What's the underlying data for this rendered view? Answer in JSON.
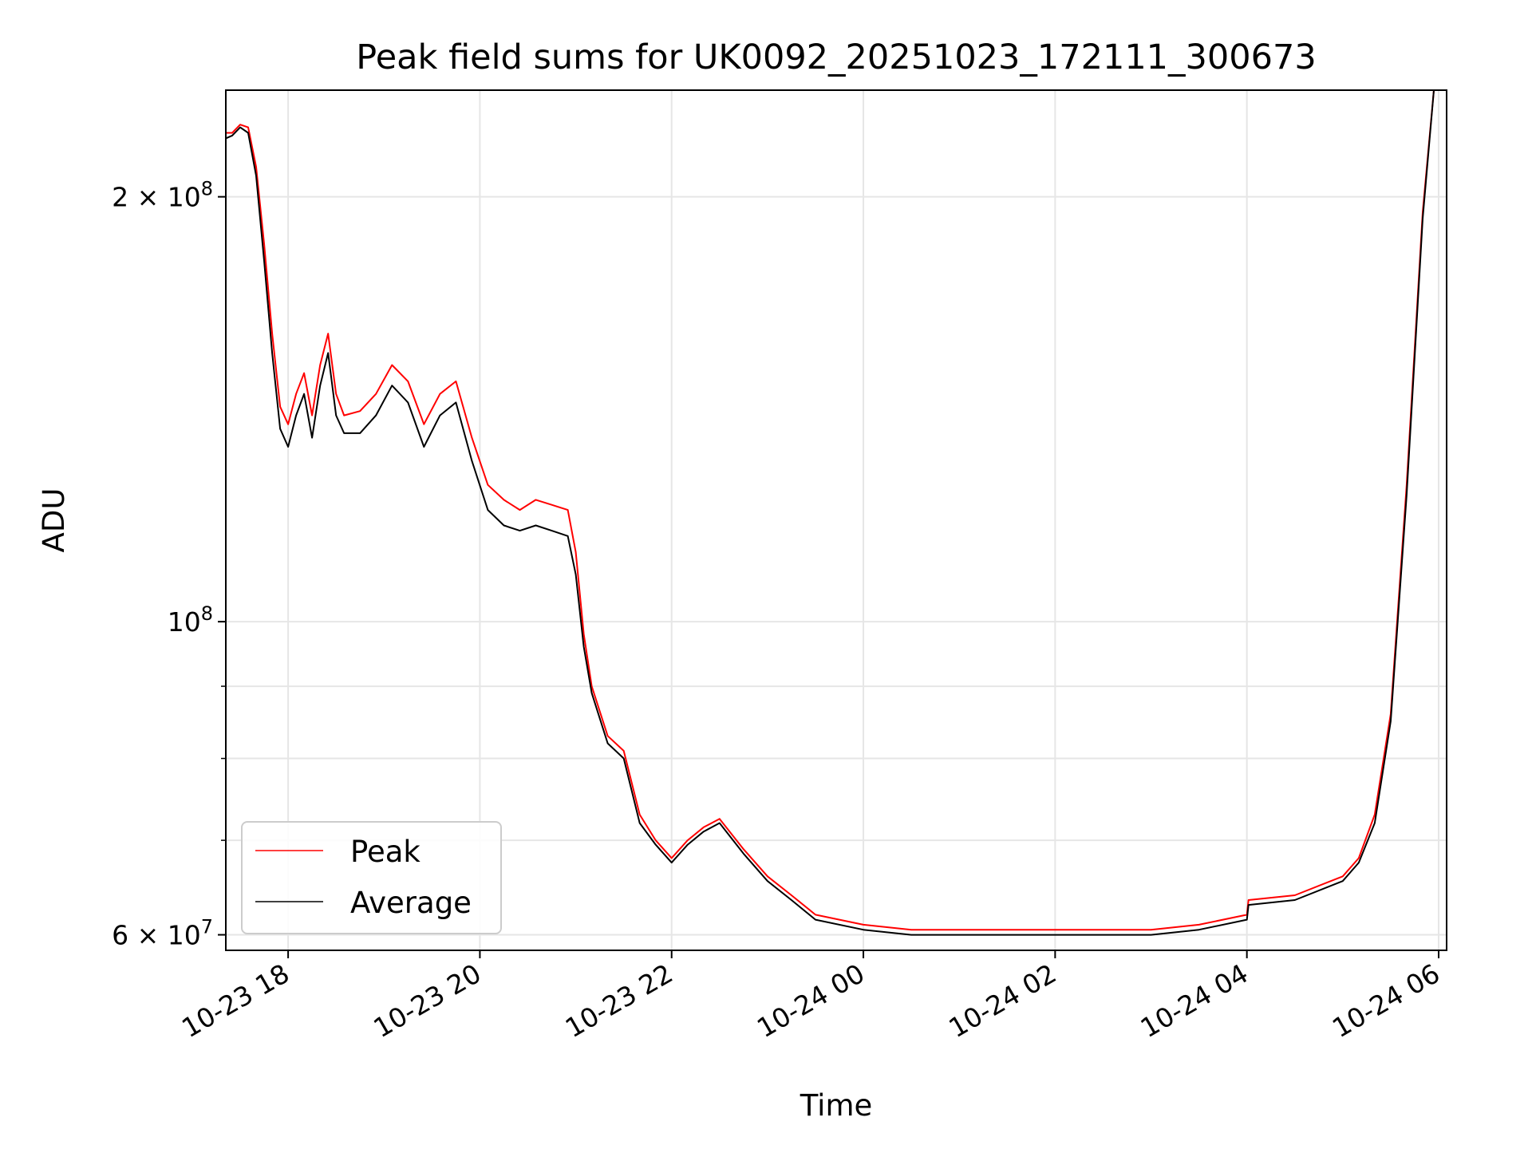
{
  "chart_data": {
    "type": "line",
    "title": "Peak field sums for UK0092_20251023_172111_300673",
    "xlabel": "Time",
    "ylabel": "ADU",
    "x_scale": "time",
    "y_scale": "log",
    "xlim": [
      "2025-10-23 17:21",
      "2025-10-24 06:05"
    ],
    "ylim": [
      58500000,
      238000000
    ],
    "grid": true,
    "legend_position": "lower left",
    "x_ticks": [
      {
        "t": "2025-10-23 18:00",
        "label": "10-23 18"
      },
      {
        "t": "2025-10-23 20:00",
        "label": "10-23 20"
      },
      {
        "t": "2025-10-23 22:00",
        "label": "10-23 22"
      },
      {
        "t": "2025-10-24 00:00",
        "label": "10-24 00"
      },
      {
        "t": "2025-10-24 02:00",
        "label": "10-24 02"
      },
      {
        "t": "2025-10-24 04:00",
        "label": "10-24 04"
      },
      {
        "t": "2025-10-24 06:00",
        "label": "10-24 06"
      }
    ],
    "y_ticks": [
      {
        "value": 60000000,
        "base": "6 × 10",
        "exp": "7"
      },
      {
        "value": 100000000,
        "base": "10",
        "exp": "8"
      },
      {
        "value": 200000000,
        "base": "2 × 10",
        "exp": "8"
      }
    ],
    "y_minor_gridlines": [
      70000000,
      80000000,
      90000000
    ],
    "series": [
      {
        "name": "Peak",
        "color": "#ff0000",
        "points": [
          [
            "2025-10-23 17:21",
            222000000
          ],
          [
            "2025-10-23 17:25",
            222000000
          ],
          [
            "2025-10-23 17:30",
            225000000
          ],
          [
            "2025-10-23 17:35",
            224000000
          ],
          [
            "2025-10-23 17:40",
            210000000
          ],
          [
            "2025-10-23 17:45",
            185000000
          ],
          [
            "2025-10-23 17:50",
            160000000
          ],
          [
            "2025-10-23 17:55",
            142000000
          ],
          [
            "2025-10-23 18:00",
            138000000
          ],
          [
            "2025-10-23 18:05",
            145000000
          ],
          [
            "2025-10-23 18:10",
            150000000
          ],
          [
            "2025-10-23 18:15",
            140000000
          ],
          [
            "2025-10-23 18:20",
            152000000
          ],
          [
            "2025-10-23 18:25",
            160000000
          ],
          [
            "2025-10-23 18:30",
            145000000
          ],
          [
            "2025-10-23 18:35",
            140000000
          ],
          [
            "2025-10-23 18:45",
            141000000
          ],
          [
            "2025-10-23 18:55",
            145000000
          ],
          [
            "2025-10-23 19:05",
            152000000
          ],
          [
            "2025-10-23 19:15",
            148000000
          ],
          [
            "2025-10-23 19:25",
            138000000
          ],
          [
            "2025-10-23 19:35",
            145000000
          ],
          [
            "2025-10-23 19:45",
            148000000
          ],
          [
            "2025-10-23 19:55",
            135000000
          ],
          [
            "2025-10-23 20:05",
            125000000
          ],
          [
            "2025-10-23 20:15",
            122000000
          ],
          [
            "2025-10-23 20:25",
            120000000
          ],
          [
            "2025-10-23 20:35",
            122000000
          ],
          [
            "2025-10-23 20:45",
            121000000
          ],
          [
            "2025-10-23 20:55",
            120000000
          ],
          [
            "2025-10-23 21:00",
            112000000
          ],
          [
            "2025-10-23 21:05",
            98000000
          ],
          [
            "2025-10-23 21:10",
            90000000
          ],
          [
            "2025-10-23 21:20",
            83000000
          ],
          [
            "2025-10-23 21:30",
            81000000
          ],
          [
            "2025-10-23 21:40",
            73000000
          ],
          [
            "2025-10-23 21:50",
            70000000
          ],
          [
            "2025-10-23 22:00",
            68000000
          ],
          [
            "2025-10-23 22:10",
            70000000
          ],
          [
            "2025-10-23 22:20",
            71500000
          ],
          [
            "2025-10-23 22:30",
            72500000
          ],
          [
            "2025-10-23 22:45",
            69000000
          ],
          [
            "2025-10-23 23:00",
            66000000
          ],
          [
            "2025-10-23 23:15",
            64000000
          ],
          [
            "2025-10-23 23:30",
            62000000
          ],
          [
            "2025-10-24 00:00",
            61000000
          ],
          [
            "2025-10-24 00:30",
            60500000
          ],
          [
            "2025-10-24 01:00",
            60500000
          ],
          [
            "2025-10-24 02:00",
            60500000
          ],
          [
            "2025-10-24 03:00",
            60500000
          ],
          [
            "2025-10-24 03:30",
            61000000
          ],
          [
            "2025-10-24 04:00",
            62000000
          ],
          [
            "2025-10-24 04:01",
            63500000
          ],
          [
            "2025-10-24 04:30",
            64000000
          ],
          [
            "2025-10-24 05:00",
            66000000
          ],
          [
            "2025-10-24 05:10",
            68000000
          ],
          [
            "2025-10-24 05:20",
            73000000
          ],
          [
            "2025-10-24 05:30",
            86000000
          ],
          [
            "2025-10-24 05:40",
            125000000
          ],
          [
            "2025-10-24 05:50",
            195000000
          ],
          [
            "2025-10-24 05:57",
            238000000
          ]
        ]
      },
      {
        "name": "Average",
        "color": "#000000",
        "points": [
          [
            "2025-10-23 17:21",
            220000000
          ],
          [
            "2025-10-23 17:25",
            221000000
          ],
          [
            "2025-10-23 17:30",
            224000000
          ],
          [
            "2025-10-23 17:35",
            222000000
          ],
          [
            "2025-10-23 17:40",
            207000000
          ],
          [
            "2025-10-23 17:45",
            180000000
          ],
          [
            "2025-10-23 17:50",
            155000000
          ],
          [
            "2025-10-23 17:55",
            137000000
          ],
          [
            "2025-10-23 18:00",
            133000000
          ],
          [
            "2025-10-23 18:05",
            140000000
          ],
          [
            "2025-10-23 18:10",
            145000000
          ],
          [
            "2025-10-23 18:15",
            135000000
          ],
          [
            "2025-10-23 18:20",
            147000000
          ],
          [
            "2025-10-23 18:25",
            155000000
          ],
          [
            "2025-10-23 18:30",
            140000000
          ],
          [
            "2025-10-23 18:35",
            136000000
          ],
          [
            "2025-10-23 18:45",
            136000000
          ],
          [
            "2025-10-23 18:55",
            140000000
          ],
          [
            "2025-10-23 19:05",
            147000000
          ],
          [
            "2025-10-23 19:15",
            143000000
          ],
          [
            "2025-10-23 19:25",
            133000000
          ],
          [
            "2025-10-23 19:35",
            140000000
          ],
          [
            "2025-10-23 19:45",
            143000000
          ],
          [
            "2025-10-23 19:55",
            130000000
          ],
          [
            "2025-10-23 20:05",
            120000000
          ],
          [
            "2025-10-23 20:15",
            117000000
          ],
          [
            "2025-10-23 20:25",
            116000000
          ],
          [
            "2025-10-23 20:35",
            117000000
          ],
          [
            "2025-10-23 20:45",
            116000000
          ],
          [
            "2025-10-23 20:55",
            115000000
          ],
          [
            "2025-10-23 21:00",
            108000000
          ],
          [
            "2025-10-23 21:05",
            96000000
          ],
          [
            "2025-10-23 21:10",
            89000000
          ],
          [
            "2025-10-23 21:20",
            82000000
          ],
          [
            "2025-10-23 21:30",
            80000000
          ],
          [
            "2025-10-23 21:40",
            72000000
          ],
          [
            "2025-10-23 21:50",
            69500000
          ],
          [
            "2025-10-23 22:00",
            67500000
          ],
          [
            "2025-10-23 22:10",
            69500000
          ],
          [
            "2025-10-23 22:20",
            71000000
          ],
          [
            "2025-10-23 22:30",
            72000000
          ],
          [
            "2025-10-23 22:45",
            68500000
          ],
          [
            "2025-10-23 23:00",
            65500000
          ],
          [
            "2025-10-23 23:15",
            63500000
          ],
          [
            "2025-10-23 23:30",
            61500000
          ],
          [
            "2025-10-24 00:00",
            60500000
          ],
          [
            "2025-10-24 00:30",
            60000000
          ],
          [
            "2025-10-24 01:00",
            60000000
          ],
          [
            "2025-10-24 02:00",
            60000000
          ],
          [
            "2025-10-24 03:00",
            60000000
          ],
          [
            "2025-10-24 03:30",
            60500000
          ],
          [
            "2025-10-24 04:00",
            61500000
          ],
          [
            "2025-10-24 04:01",
            63000000
          ],
          [
            "2025-10-24 04:30",
            63500000
          ],
          [
            "2025-10-24 05:00",
            65500000
          ],
          [
            "2025-10-24 05:10",
            67500000
          ],
          [
            "2025-10-24 05:20",
            72000000
          ],
          [
            "2025-10-24 05:30",
            85000000
          ],
          [
            "2025-10-24 05:40",
            123000000
          ],
          [
            "2025-10-24 05:50",
            193000000
          ],
          [
            "2025-10-24 05:57",
            238000000
          ]
        ]
      }
    ]
  }
}
